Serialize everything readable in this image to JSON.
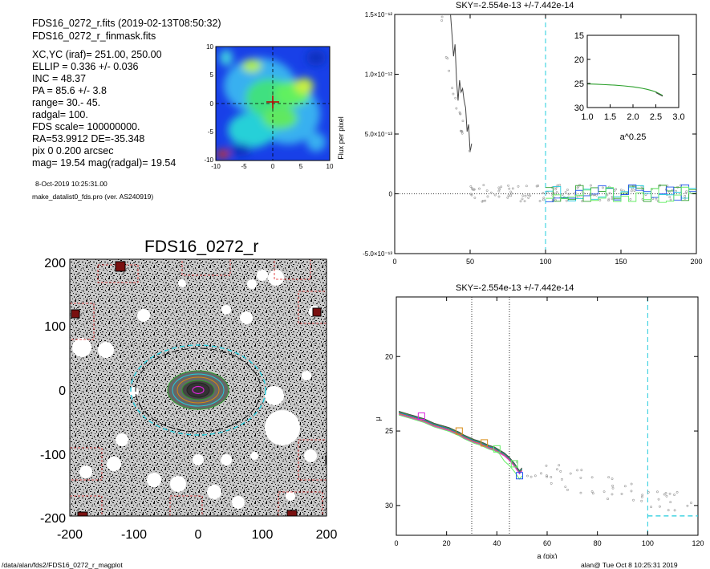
{
  "header": {
    "line1": "FDS16_0272_r.fits  (2019-02-13T08:50:32)",
    "line2": "FDS16_0272_r_finmask.fits",
    "params": [
      "XC,YC (iraf)=   251.00, 250.00",
      "ELLIP = 0.336 +/- 0.036",
      "INC   = 48.37",
      "PA    = 85.6 +/-   3.8",
      "range=  30.-  45.",
      "radgal=  100.",
      "FDS scale=  100000000.",
      "RA=53.9912  DE=-35.348",
      "pix 0 0.200 arcsec",
      "mag=  19.54  mag(radgal)=  19.54"
    ],
    "date": "8-Oct-2019 10:25:31.00",
    "program": "make_datalist0_fds.pro (ver. AS240919)"
  },
  "footer": {
    "left": "/data/alan/fds2/FDS16_0272_r_magplot",
    "right": "alan@  Tue Oct  8 10:25:31 2019"
  },
  "colors": {
    "profile": "#444444",
    "green": "#2ca02c",
    "cyan": "#22ccdd",
    "blue": "#2255ee",
    "magenta": "#dd22dd",
    "orange": "#d88a10",
    "light_green": "#66ee66",
    "mask_red": "#dd2222"
  },
  "chart_data": [
    {
      "id": "center_map",
      "type": "heatmap",
      "xlim": [
        -10,
        10
      ],
      "ylim": [
        -10,
        10
      ],
      "xticks": [
        "-10",
        "-5",
        "0",
        "5",
        "10"
      ],
      "yticks": [
        "10",
        "5",
        "0",
        "-5",
        "-10"
      ]
    },
    {
      "id": "image",
      "type": "scatter",
      "title": "FDS16_0272_r",
      "xlim": [
        -200,
        200
      ],
      "ylim": [
        -200,
        200
      ],
      "xticks": [
        "-200",
        "-100",
        "0",
        "100",
        "200"
      ],
      "yticks": [
        "200",
        "100",
        "0",
        "-100",
        "-200"
      ]
    },
    {
      "id": "sky",
      "type": "line",
      "title": "SKY=-2.554e-13 +/-7.442e-14",
      "ylabel": "Flux per pixel",
      "xlim": [
        0,
        200
      ],
      "ylim": [
        -5e-13,
        1.5e-12
      ],
      "xticks": [
        "0",
        "50",
        "100",
        "150",
        "200"
      ],
      "yticks": [
        "-5.0×10⁻¹³",
        "0",
        "5.0×10⁻¹³",
        "1.0×10⁻¹²",
        "1.5×10⁻¹²"
      ],
      "vline": 100,
      "profile_x": [
        37,
        38,
        39,
        40,
        41,
        42,
        43,
        44,
        45,
        46,
        47,
        48,
        49,
        50,
        51
      ],
      "profile_y": [
        1.5e-12,
        1.33e-12,
        1.15e-12,
        1.25e-12,
        9.5e-13,
        7.8e-13,
        9.5e-13,
        8.5e-13,
        8.8e-13,
        7.8e-13,
        7.2e-13,
        5.2e-13,
        5.8e-13,
        3.5e-13,
        4.2e-13
      ],
      "inset": {
        "xlabel": "a^0.25",
        "xlim": [
          1.0,
          3.0
        ],
        "ylim": [
          15,
          30
        ],
        "xticks": [
          "1.0",
          "1.5",
          "2.0",
          "2.5",
          "3.0"
        ],
        "yticks": [
          "15",
          "20",
          "25",
          "30"
        ],
        "x": [
          1.0,
          1.2,
          1.4,
          1.6,
          1.8,
          2.0,
          2.1,
          2.2,
          2.3,
          2.4,
          2.5,
          2.55,
          2.6,
          2.65
        ],
        "y": [
          25.1,
          25.15,
          25.25,
          25.35,
          25.5,
          25.7,
          25.85,
          26.0,
          26.2,
          26.45,
          26.75,
          27.0,
          27.25,
          27.5
        ]
      }
    },
    {
      "id": "mu",
      "type": "line",
      "title": "SKY=-2.554e-13 +/-7.442e-14",
      "xlabel": "a (pix)",
      "ylabel": "μ",
      "xlim": [
        0,
        120
      ],
      "ylim": [
        32,
        16
      ],
      "xticks": [
        "0",
        "20",
        "40",
        "60",
        "80",
        "100",
        "120"
      ],
      "yticks": [
        "20",
        "25",
        "30"
      ],
      "vlines_dotted": [
        30,
        45
      ],
      "vline_dashed": 100,
      "sky_level": 30.7,
      "x": [
        1,
        3,
        5,
        7,
        9,
        11,
        13,
        15,
        17,
        19,
        21,
        23,
        25,
        27,
        29,
        31,
        33,
        35,
        37,
        39,
        41,
        43,
        45,
        47,
        49,
        50
      ],
      "y": [
        23.8,
        23.9,
        24.0,
        24.1,
        24.2,
        24.3,
        24.45,
        24.6,
        24.7,
        24.8,
        24.9,
        25.05,
        25.2,
        25.4,
        25.55,
        25.7,
        25.8,
        25.95,
        26.1,
        26.2,
        26.4,
        26.6,
        26.9,
        27.3,
        27.8,
        27.6
      ],
      "markers": [
        {
          "x": 10,
          "y": 24.0,
          "color": "magenta"
        },
        {
          "x": 25,
          "y": 25.0,
          "color": "orange"
        },
        {
          "x": 35,
          "y": 25.8,
          "color": "orange"
        },
        {
          "x": 40,
          "y": 26.2,
          "color": "light_green"
        },
        {
          "x": 47,
          "y": 27.2,
          "color": "light_green"
        },
        {
          "x": 49,
          "y": 28.0,
          "color": "blue"
        }
      ]
    }
  ]
}
